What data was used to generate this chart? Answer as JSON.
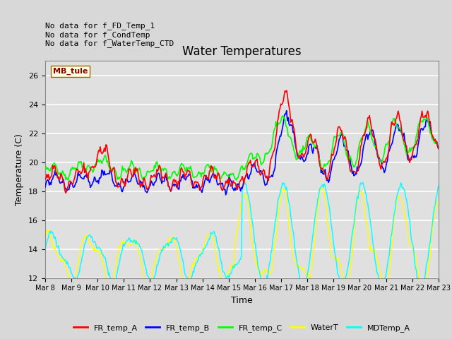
{
  "title": "Water Temperatures",
  "xlabel": "Time",
  "ylabel": "Temperature (C)",
  "ylim": [
    12,
    27
  ],
  "yticks": [
    12,
    14,
    16,
    18,
    20,
    22,
    24,
    26
  ],
  "fig_bg_color": "#d8d8d8",
  "plot_bg_color": "#e0e0e0",
  "grid_color": "white",
  "annotations": [
    "No data for f_FD_Temp_1",
    "No data for f_CondTemp",
    "No data for f_WaterTemp_CTD"
  ],
  "legend_label": "MB_tule",
  "series_colors": {
    "FR_temp_A": "red",
    "FR_temp_B": "blue",
    "FR_temp_C": "lime",
    "WaterT": "yellow",
    "MDTemp_A": "cyan"
  },
  "num_points": 480,
  "xticklabels": [
    "Mar 8",
    "Mar 9",
    "Mar 10",
    "Mar 11",
    "Mar 12",
    "Mar 13",
    "Mar 14",
    "Mar 15",
    "Mar 16",
    "Mar 17",
    "Mar 18",
    "Mar 19",
    "Mar 20",
    "Mar 21",
    "Mar 22",
    "Mar 23"
  ],
  "n_days": 15,
  "figsize": [
    6.4,
    4.8
  ],
  "dpi": 100,
  "title_fontsize": 12,
  "axis_fontsize": 9,
  "tick_fontsize": 7,
  "legend_fontsize": 8,
  "ann_fontsize": 8
}
